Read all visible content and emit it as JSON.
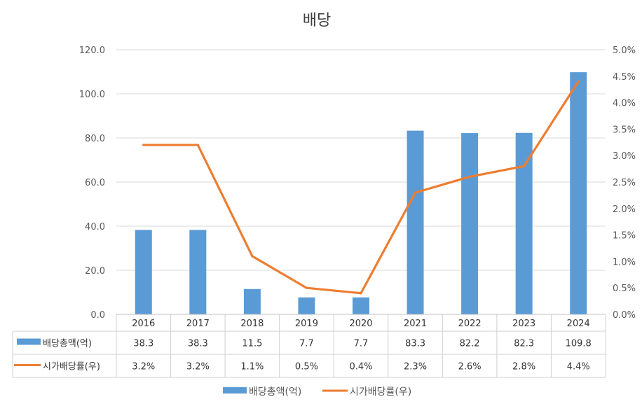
{
  "chart_data": {
    "type": "bar",
    "title": "배당",
    "categories": [
      "2016",
      "2017",
      "2018",
      "2019",
      "2020",
      "2021",
      "2022",
      "2023",
      "2024"
    ],
    "series": [
      {
        "name": "배당총액(억)",
        "kind": "bar",
        "axis": "left",
        "color": "#5B9BD5",
        "values": [
          38.3,
          38.3,
          11.5,
          7.7,
          7.7,
          83.3,
          82.2,
          82.3,
          109.8
        ],
        "labels": [
          "38.3",
          "38.3",
          "11.5",
          "7.7",
          "7.7",
          "83.3",
          "82.2",
          "82.3",
          "109.8"
        ]
      },
      {
        "name": "시가배당률(우)",
        "kind": "line",
        "axis": "right",
        "color": "#ED7D31",
        "values": [
          3.2,
          3.2,
          1.1,
          0.5,
          0.4,
          2.3,
          2.6,
          2.8,
          4.4
        ],
        "labels": [
          "3.2%",
          "3.2%",
          "1.1%",
          "0.5%",
          "0.4%",
          "2.3%",
          "2.6%",
          "2.8%",
          "4.4%"
        ]
      }
    ],
    "left_axis": {
      "ylim": [
        0,
        120
      ],
      "ticks": [
        "0.0",
        "20.0",
        "40.0",
        "60.0",
        "80.0",
        "100.0",
        "120.0"
      ]
    },
    "right_axis": {
      "ylim": [
        0,
        5
      ],
      "ticks": [
        "0.0%",
        "0.5%",
        "1.0%",
        "1.5%",
        "2.0%",
        "2.5%",
        "3.0%",
        "3.5%",
        "4.0%",
        "4.5%",
        "5.0%"
      ]
    },
    "grid": true,
    "legend": "bottom",
    "data_table": true
  }
}
